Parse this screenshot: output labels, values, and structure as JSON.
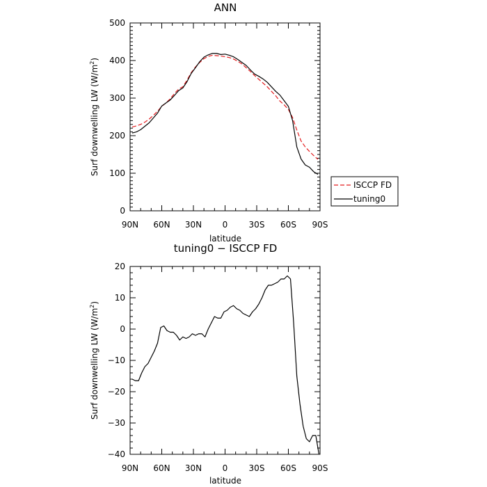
{
  "chart_data": [
    {
      "type": "line",
      "title": "ANN",
      "xlabel": "latitude",
      "ylabel_main": "Surf downwelling LW (W/m",
      "ylabel_sup": "2",
      "ylabel_close": ")",
      "xlim": [
        90,
        -90
      ],
      "ylim": [
        0,
        500
      ],
      "xticks": [
        90,
        60,
        30,
        0,
        -30,
        -60,
        -90
      ],
      "xtick_labels": [
        "90N",
        "60N",
        "30N",
        "0",
        "30S",
        "60S",
        "90S"
      ],
      "yticks": [
        0,
        100,
        200,
        300,
        400,
        500
      ],
      "ytick_labels": [
        "0",
        "100",
        "200",
        "300",
        "400",
        "500"
      ],
      "legend": "outside-right",
      "series": [
        {
          "name": "ISCCP FD",
          "color": "#e41a1c",
          "dash": true,
          "x": [
            88,
            84,
            80,
            76,
            72,
            68,
            64,
            60,
            56,
            52,
            48,
            44,
            40,
            36,
            32,
            28,
            24,
            20,
            16,
            12,
            8,
            4,
            0,
            -4,
            -8,
            -12,
            -16,
            -20,
            -24,
            -28,
            -32,
            -36,
            -40,
            -44,
            -48,
            -52,
            -56,
            -60,
            -64,
            -68,
            -72,
            -76,
            -80,
            -84,
            -88
          ],
          "y": [
            223,
            226,
            230,
            236,
            244,
            254,
            265,
            278,
            287,
            298,
            312,
            324,
            330,
            348,
            368,
            383,
            395,
            405,
            411,
            414,
            413,
            412,
            410,
            408,
            404,
            398,
            391,
            381,
            371,
            360,
            350,
            340,
            330,
            318,
            306,
            292,
            282,
            270,
            248,
            215,
            186,
            170,
            158,
            147,
            137
          ]
        },
        {
          "name": "tuning0",
          "color": "#000000",
          "dash": false,
          "x": [
            88,
            84,
            80,
            76,
            72,
            68,
            64,
            60,
            56,
            52,
            48,
            44,
            40,
            36,
            32,
            28,
            24,
            20,
            16,
            12,
            8,
            4,
            0,
            -4,
            -8,
            -12,
            -16,
            -20,
            -24,
            -28,
            -32,
            -36,
            -40,
            -44,
            -48,
            -52,
            -56,
            -60,
            -64,
            -68,
            -72,
            -76,
            -80,
            -84,
            -88
          ],
          "y": [
            207,
            210,
            216,
            225,
            234,
            247,
            260,
            279,
            287,
            295,
            307,
            320,
            327,
            344,
            366,
            381,
            397,
            409,
            415,
            419,
            419,
            416,
            417,
            414,
            410,
            403,
            395,
            387,
            375,
            364,
            358,
            351,
            342,
            330,
            318,
            308,
            293,
            278,
            240,
            170,
            138,
            122,
            116,
            104,
            97
          ]
        }
      ]
    },
    {
      "type": "line",
      "title": "tuning0 − ISCCP FD",
      "xlabel": "latitude",
      "ylabel_main": "Surf downwelling LW (W/m",
      "ylabel_sup": "2",
      "ylabel_close": ")",
      "xlim": [
        90,
        -90
      ],
      "ylim": [
        -40,
        20
      ],
      "xticks": [
        90,
        60,
        30,
        0,
        -30,
        -60,
        -90
      ],
      "xtick_labels": [
        "90N",
        "60N",
        "30N",
        "0",
        "30S",
        "60S",
        "90S"
      ],
      "yticks": [
        -40,
        -30,
        -20,
        -10,
        0,
        10,
        20
      ],
      "ytick_labels": [
        "−40",
        "−30",
        "−20",
        "−10",
        "0",
        "10",
        "20"
      ],
      "series": [
        {
          "color": "#000000",
          "dash": false,
          "x": [
            88,
            85,
            82,
            79,
            76,
            73,
            70,
            67,
            64,
            61,
            58,
            55,
            52,
            49,
            46,
            43,
            40,
            37,
            34,
            31,
            28,
            25,
            22,
            19,
            16,
            13,
            10,
            7,
            4,
            1,
            -2,
            -5,
            -8,
            -11,
            -14,
            -17,
            -20,
            -23,
            -26,
            -29,
            -32,
            -35,
            -38,
            -41,
            -44,
            -47,
            -50,
            -53,
            -56,
            -59,
            -62,
            -65,
            -68,
            -71,
            -74,
            -77,
            -80,
            -83,
            -86,
            -89
          ],
          "y": [
            -16,
            -16.5,
            -16.5,
            -14,
            -12,
            -11,
            -9,
            -7,
            -4.5,
            0.5,
            1,
            -0.5,
            -1,
            -1,
            -2,
            -3.5,
            -2.5,
            -3,
            -2.5,
            -1.5,
            -2,
            -1.5,
            -1.5,
            -2.5,
            0,
            2,
            4,
            3.5,
            3.5,
            5.5,
            6,
            7,
            7.5,
            6.5,
            6,
            5,
            4.5,
            4,
            5.5,
            6.5,
            8,
            10,
            12.5,
            14,
            14,
            14.5,
            15,
            16,
            16,
            17,
            16,
            2,
            -15,
            -24,
            -31,
            -35,
            -36,
            -34,
            -34,
            -40
          ]
        }
      ]
    }
  ]
}
